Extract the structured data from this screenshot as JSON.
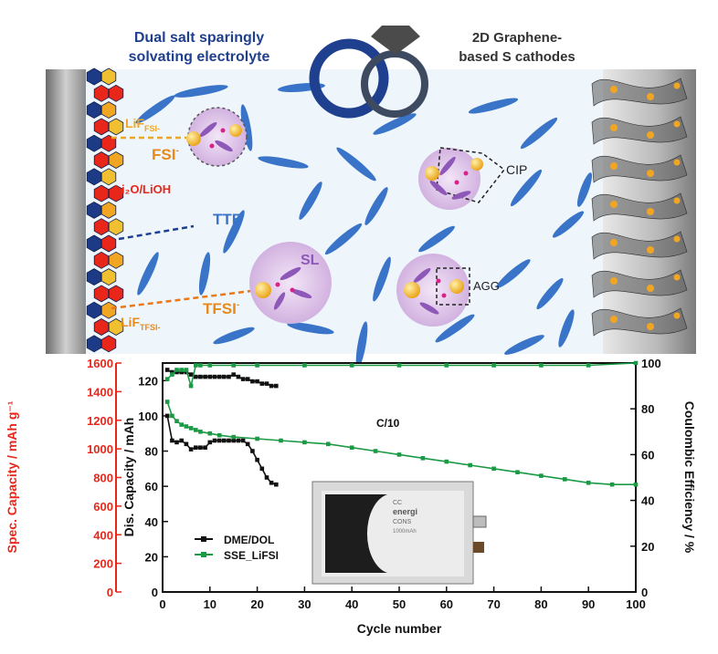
{
  "header": {
    "left_line1": "Dual salt sparingly",
    "left_line2": "solvating electrolyte",
    "right_line1": "2D Graphene-",
    "right_line2": "based S cathodes"
  },
  "labels": {
    "lif_fsi_main": "LiF",
    "lif_fsi_sub": "FSI-",
    "fsi_main": "FSI",
    "fsi_sup": "-",
    "li2o_lioh": "Li₂O/LiOH",
    "tte": "TTE",
    "sl": "SL",
    "tfsi_main": "TFSI",
    "tfsi_sup": "-",
    "lif_tfsi_main": "LiF",
    "lif_tfsi_sub": "TFSI-",
    "cip": "CIP",
    "agg": "AGG"
  },
  "colors": {
    "accent_blue": "#1f3f8f",
    "lithium_orange": "#f0a623",
    "anion_red": "#e8271a",
    "tte_blue": "#3a74c8",
    "dme_black": "#111111",
    "sse_green": "#1a9a45",
    "left_axis_red": "#e8271a"
  },
  "chart_data": {
    "type": "line",
    "annotation": "C/10",
    "xlabel": "Cycle number",
    "ylabel_left": "Dis. Capacity / mAh",
    "ylabel_outer": "Spec. Capacity / mAh g⁻¹",
    "ylabel_right": "Coulombic Efficiency / %",
    "xlim": [
      0,
      100
    ],
    "ylim_left": [
      0,
      130
    ],
    "ylim_right": [
      0,
      100
    ],
    "ylim_outer": [
      0,
      1600
    ],
    "x_ticks": [
      0,
      10,
      20,
      30,
      40,
      50,
      60,
      70,
      80,
      90,
      100
    ],
    "y_ticks_left": [
      0,
      20,
      40,
      60,
      80,
      100,
      120
    ],
    "y_ticks_right": [
      0,
      20,
      40,
      60,
      80,
      100
    ],
    "y_ticks_outer": [
      0,
      200,
      400,
      600,
      800,
      1000,
      1200,
      1400,
      1600
    ],
    "legend_position": "bottom-left",
    "series": [
      {
        "name": "DME/DOL",
        "axis": "left",
        "x": [
          1,
          2,
          3,
          4,
          5,
          6,
          7,
          8,
          9,
          10,
          11,
          12,
          13,
          14,
          15,
          16,
          17,
          18,
          19,
          20,
          21,
          22,
          23,
          24
        ],
        "y": [
          100,
          86,
          85,
          86,
          84,
          81,
          82,
          82,
          82,
          85,
          86,
          86,
          86,
          86,
          86,
          86,
          86,
          84,
          80,
          75,
          70,
          65,
          62,
          61
        ]
      },
      {
        "name": "DME/DOL CE",
        "axis": "right",
        "x": [
          1,
          2,
          3,
          4,
          5,
          6,
          7,
          8,
          9,
          10,
          11,
          12,
          13,
          14,
          15,
          16,
          17,
          18,
          19,
          20,
          21,
          22,
          23,
          24
        ],
        "y": [
          97,
          96,
          96,
          96,
          96,
          95,
          94,
          94,
          94,
          94,
          94,
          94,
          94,
          94,
          95,
          94,
          93,
          93,
          92,
          92,
          91,
          91,
          90,
          90
        ]
      },
      {
        "name": "SSE_LiFSI",
        "axis": "left",
        "x": [
          1,
          2,
          3,
          4,
          5,
          6,
          7,
          8,
          10,
          12,
          15,
          20,
          25,
          30,
          35,
          40,
          45,
          50,
          55,
          60,
          65,
          70,
          75,
          80,
          85,
          90,
          95,
          100
        ],
        "y": [
          108,
          100,
          97,
          95,
          94,
          93,
          92,
          91,
          90,
          89,
          88,
          87,
          86,
          85,
          84,
          82,
          80,
          78,
          76,
          74,
          72,
          70,
          68,
          66,
          64,
          62,
          61,
          61
        ]
      },
      {
        "name": "SSE_LiFSI CE",
        "axis": "right",
        "x": [
          1,
          2,
          3,
          4,
          5,
          6,
          7,
          8,
          10,
          15,
          20,
          30,
          40,
          50,
          60,
          70,
          80,
          90,
          100
        ],
        "y": [
          93,
          95,
          97,
          97,
          97,
          90,
          99,
          99,
          99,
          99,
          99,
          99,
          99,
          99,
          99,
          99,
          99,
          99,
          100
        ]
      }
    ]
  },
  "inset": {
    "text_line1": "CC",
    "text_line2": "energi",
    "text_line3": "CONS",
    "text_line4": "1000mAh"
  }
}
